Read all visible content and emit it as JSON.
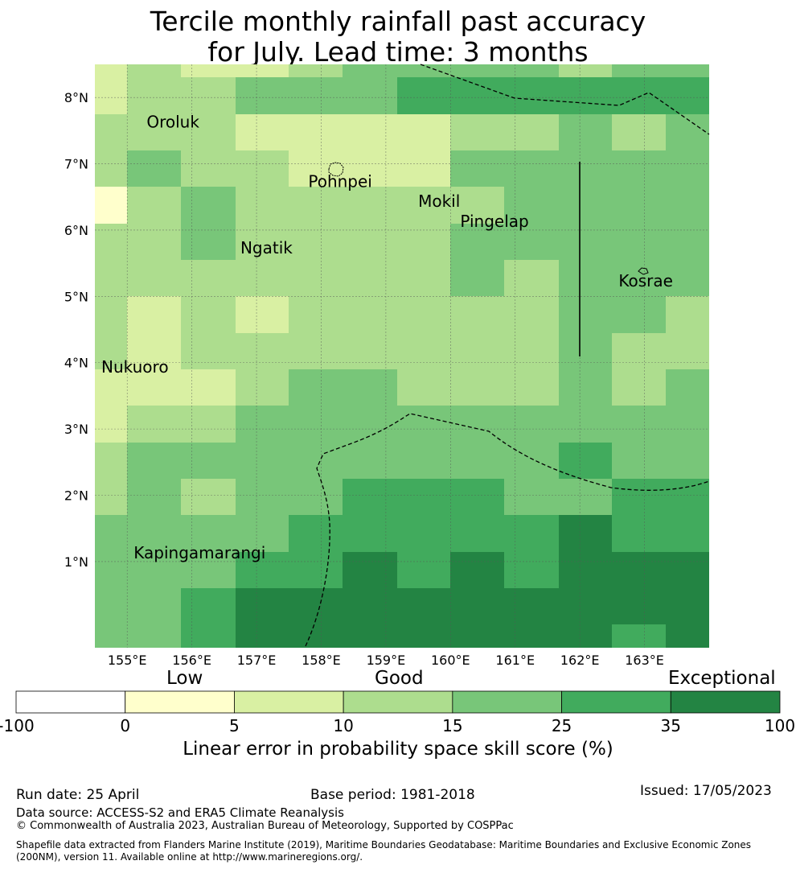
{
  "title": {
    "line1": "Tercile monthly rainfall past accuracy",
    "line2": "for July. Lead time: 3 months"
  },
  "map": {
    "lon_range": [
      154.5,
      164.0
    ],
    "lat_range": [
      -0.3,
      8.5
    ],
    "lon_ticks": [
      {
        "value": 155,
        "label": "155°E"
      },
      {
        "value": 156,
        "label": "156°E"
      },
      {
        "value": 157,
        "label": "157°E"
      },
      {
        "value": 158,
        "label": "158°E"
      },
      {
        "value": 159,
        "label": "159°E"
      },
      {
        "value": 160,
        "label": "160°E"
      },
      {
        "value": 161,
        "label": "161°E"
      },
      {
        "value": 162,
        "label": "162°E"
      },
      {
        "value": 163,
        "label": "163°E"
      }
    ],
    "lat_ticks": [
      {
        "value": 8,
        "label": "8°N"
      },
      {
        "value": 7,
        "label": "7°N"
      },
      {
        "value": 6,
        "label": "6°N"
      },
      {
        "value": 5,
        "label": "5°N"
      },
      {
        "value": 4,
        "label": "4°N"
      },
      {
        "value": 3,
        "label": "3°N"
      },
      {
        "value": 2,
        "label": "2°N"
      },
      {
        "value": 1,
        "label": "1°N"
      }
    ],
    "places": [
      {
        "name": "Oroluk",
        "lon": 155.3,
        "lat": 7.55
      },
      {
        "name": "Pohnpei",
        "lon": 157.8,
        "lat": 6.65
      },
      {
        "name": "Mokil",
        "lon": 159.5,
        "lat": 6.35
      },
      {
        "name": "Pingelap",
        "lon": 160.15,
        "lat": 6.05
      },
      {
        "name": "Ngatik",
        "lon": 156.75,
        "lat": 5.65
      },
      {
        "name": "Kosrae",
        "lon": 162.6,
        "lat": 5.15
      },
      {
        "name": "Nukuoro",
        "lon": 154.6,
        "lat": 3.85
      },
      {
        "name": "Kapingamarangi",
        "lon": 155.1,
        "lat": 1.05
      }
    ],
    "grid": {
      "lons": [
        154.5,
        155.0,
        155.83,
        156.67,
        157.5,
        158.33,
        159.17,
        160.0,
        160.83,
        161.67,
        162.5,
        163.33,
        164.0
      ],
      "lats": [
        8.5,
        8.3,
        7.75,
        7.2,
        6.65,
        6.1,
        5.55,
        5.0,
        4.45,
        3.9,
        3.35,
        2.8,
        2.25,
        1.7,
        1.15,
        0.6,
        0.05,
        -0.3
      ],
      "class_rows": [
        [
          3,
          4,
          3,
          3,
          4,
          5,
          5,
          5,
          5,
          4,
          5,
          5
        ],
        [
          3,
          4,
          4,
          5,
          5,
          5,
          6,
          6,
          6,
          6,
          6,
          6
        ],
        [
          4,
          4,
          4,
          3,
          3,
          3,
          3,
          4,
          4,
          5,
          4,
          5
        ],
        [
          4,
          5,
          4,
          4,
          3,
          3,
          3,
          5,
          5,
          5,
          5,
          5
        ],
        [
          2,
          4,
          5,
          4,
          4,
          4,
          4,
          4,
          5,
          5,
          5,
          5
        ],
        [
          4,
          4,
          5,
          4,
          4,
          4,
          4,
          5,
          5,
          5,
          5,
          5
        ],
        [
          4,
          4,
          4,
          4,
          4,
          4,
          4,
          5,
          4,
          5,
          5,
          5
        ],
        [
          4,
          3,
          4,
          3,
          4,
          4,
          4,
          4,
          4,
          5,
          5,
          4
        ],
        [
          4,
          3,
          4,
          4,
          4,
          4,
          4,
          4,
          4,
          5,
          4,
          4
        ],
        [
          3,
          3,
          3,
          4,
          5,
          5,
          4,
          4,
          4,
          5,
          4,
          5
        ],
        [
          3,
          4,
          4,
          5,
          5,
          5,
          5,
          5,
          5,
          5,
          5,
          5
        ],
        [
          4,
          5,
          5,
          5,
          5,
          5,
          5,
          5,
          5,
          6,
          5,
          5
        ],
        [
          4,
          5,
          4,
          5,
          5,
          6,
          6,
          6,
          5,
          5,
          6,
          6
        ],
        [
          5,
          5,
          5,
          5,
          6,
          6,
          6,
          6,
          6,
          7,
          6,
          6
        ],
        [
          5,
          5,
          5,
          6,
          6,
          7,
          6,
          7,
          6,
          7,
          7,
          7
        ],
        [
          5,
          5,
          6,
          7,
          7,
          7,
          7,
          7,
          7,
          7,
          7,
          7
        ],
        [
          5,
          5,
          6,
          7,
          7,
          7,
          7,
          7,
          7,
          7,
          6,
          7
        ]
      ]
    }
  },
  "colorbar": {
    "headers": {
      "low": "Low",
      "good": "Good",
      "exceptional": "Exceptional"
    },
    "bins": [
      {
        "from": -100,
        "to": 0,
        "color": "#ffffff"
      },
      {
        "from": 0,
        "to": 5,
        "color": "#ffffcc"
      },
      {
        "from": 5,
        "to": 10,
        "color": "#d9f0a3"
      },
      {
        "from": 10,
        "to": 15,
        "color": "#addd8e"
      },
      {
        "from": 15,
        "to": 25,
        "color": "#78c679"
      },
      {
        "from": 25,
        "to": 35,
        "color": "#41ab5d"
      },
      {
        "from": 35,
        "to": 100,
        "color": "#238443"
      }
    ],
    "ticks": [
      "-100",
      "0",
      "5",
      "10",
      "15",
      "25",
      "35",
      "100"
    ],
    "label": "Linear error in probability space skill score (%)"
  },
  "footer": {
    "run_date": "Run date: 25 April",
    "base_period": "Base period: 1981-2018",
    "issued": "Issued: 17/05/2023",
    "data_source": "Data source: ACCESS-S2 and ERA5 Climate Reanalysis",
    "copyright": "© Commonwealth of Australia 2023, Australian Bureau of Meteorology, Supported by COSPPac",
    "shapefile": "Shapefile data extracted from Flanders Marine Institute (2019), Maritime Boundaries Geodatabase: Maritime Boundaries and Exclusive Economic Zones (200NM), version 11. Available online at http://www.marineregions.org/."
  }
}
